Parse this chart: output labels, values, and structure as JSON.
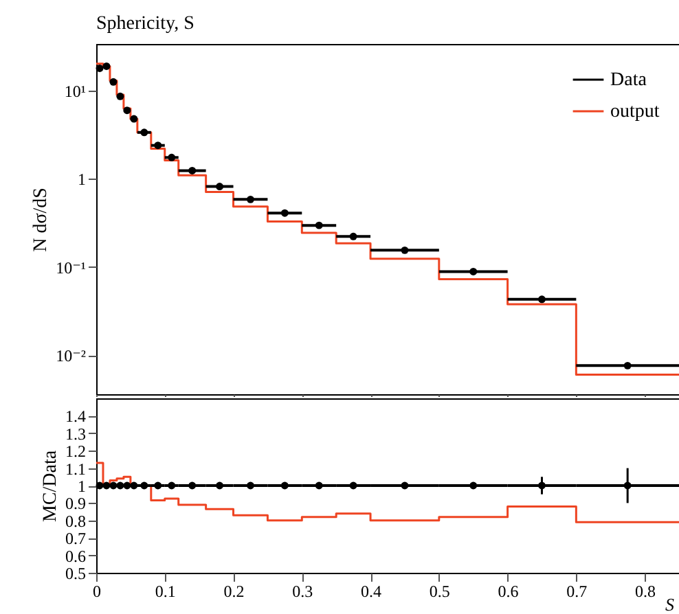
{
  "chart_data": [
    {
      "type": "scatter",
      "title": "Sphericity, S",
      "ylabel": "N dσ/dS",
      "log": "y",
      "legend": "top right",
      "tick_labels": "y",
      "xlim": [
        0,
        0.85
      ],
      "xticks": [
        0,
        0.1,
        0.2,
        0.3,
        0.4,
        0.5,
        0.6,
        0.7,
        0.8
      ],
      "ylim": [
        0.0036,
        34
      ],
      "yticks": [
        {
          "value": 10,
          "label": "10¹"
        },
        {
          "value": 1,
          "label": "1"
        },
        {
          "value": 0.1,
          "label": "10⁻¹"
        },
        {
          "value": 0.01,
          "label": "10⁻²"
        }
      ],
      "x": [
        0.005,
        0.015,
        0.025,
        0.035,
        0.045,
        0.055,
        0.07,
        0.09,
        0.11,
        0.14,
        0.18,
        0.225,
        0.275,
        0.325,
        0.375,
        0.45,
        0.55,
        0.65,
        0.775
      ],
      "series": [
        {
          "name": "Data",
          "type": "scatter",
          "marker": "circle",
          "color": "#000000",
          "values": [
            18,
            19,
            12.6,
            8.65,
            6.0,
            4.8,
            3.37,
            2.4,
            1.75,
            1.24,
            0.82,
            0.585,
            0.41,
            0.297,
            0.222,
            0.155,
            0.0887,
            0.043,
            0.0076
          ],
          "xerrors": [
            0.005,
            0.005,
            0.005,
            0.005,
            0.005,
            0.005,
            0.01,
            0.01,
            0.01,
            0.02,
            0.02,
            0.025,
            0.025,
            0.025,
            0.025,
            0.05,
            0.05,
            0.05,
            0.075
          ]
        },
        {
          "name": "output",
          "type": "step",
          "color": "#ee4422",
          "x": [
            0,
            0.01,
            0.02,
            0.03,
            0.04,
            0.05,
            0.06,
            0.08,
            0.1,
            0.12,
            0.16,
            0.2,
            0.25,
            0.3,
            0.35,
            0.4,
            0.5,
            0.6,
            0.7,
            0.85
          ],
          "values": [
            20.3,
            19,
            13.0,
            9.0,
            6.3,
            4.8,
            3.37,
            2.2,
            1.62,
            1.1,
            0.71,
            0.486,
            0.328,
            0.244,
            0.186,
            0.124,
            0.0727,
            0.0378,
            0.006,
            0.006
          ]
        }
      ]
    },
    {
      "type": "scatter",
      "xlabel": "S",
      "ylabel": "MC/Data",
      "xlim": [
        0,
        0.85
      ],
      "xticks": [
        0,
        0.1,
        0.2,
        0.3,
        0.4,
        0.5,
        0.6,
        0.7,
        0.8
      ],
      "ylim": [
        0.5,
        1.5
      ],
      "yticks": [
        0.5,
        0.6,
        0.7,
        0.8,
        0.9,
        1,
        1.1,
        1.2,
        1.3,
        1.4
      ],
      "x": [
        0.005,
        0.015,
        0.025,
        0.035,
        0.045,
        0.055,
        0.07,
        0.09,
        0.11,
        0.14,
        0.18,
        0.225,
        0.275,
        0.325,
        0.375,
        0.45,
        0.55,
        0.65,
        0.775
      ],
      "series": [
        {
          "type": "scatter",
          "marker": "circle",
          "color": "#000000",
          "values": [
            1,
            1,
            1,
            1,
            1,
            1,
            1,
            1,
            1,
            1,
            1,
            1,
            1,
            1,
            1,
            1,
            1,
            1,
            1
          ],
          "xerrors": [
            0.005,
            0.005,
            0.005,
            0.005,
            0.005,
            0.005,
            0.01,
            0.01,
            0.01,
            0.02,
            0.02,
            0.025,
            0.025,
            0.025,
            0.025,
            0.05,
            0.05,
            0.05,
            0.075
          ],
          "errors": [
            null,
            null,
            null,
            null,
            null,
            null,
            null,
            null,
            null,
            null,
            null,
            null,
            null,
            null,
            null,
            null,
            null,
            0.05,
            0.1
          ]
        },
        {
          "type": "step",
          "color": "#ee4422",
          "x": [
            0,
            0.01,
            0.02,
            0.03,
            0.04,
            0.05,
            0.06,
            0.08,
            0.1,
            0.12,
            0.16,
            0.2,
            0.25,
            0.3,
            0.35,
            0.4,
            0.5,
            0.6,
            0.7,
            0.85
          ],
          "values": [
            1.13,
            1.0,
            1.03,
            1.04,
            1.05,
            1.0,
            1.0,
            0.915,
            0.925,
            0.89,
            0.865,
            0.83,
            0.8,
            0.82,
            0.84,
            0.8,
            0.82,
            0.88,
            0.79,
            0.79
          ]
        }
      ]
    }
  ]
}
